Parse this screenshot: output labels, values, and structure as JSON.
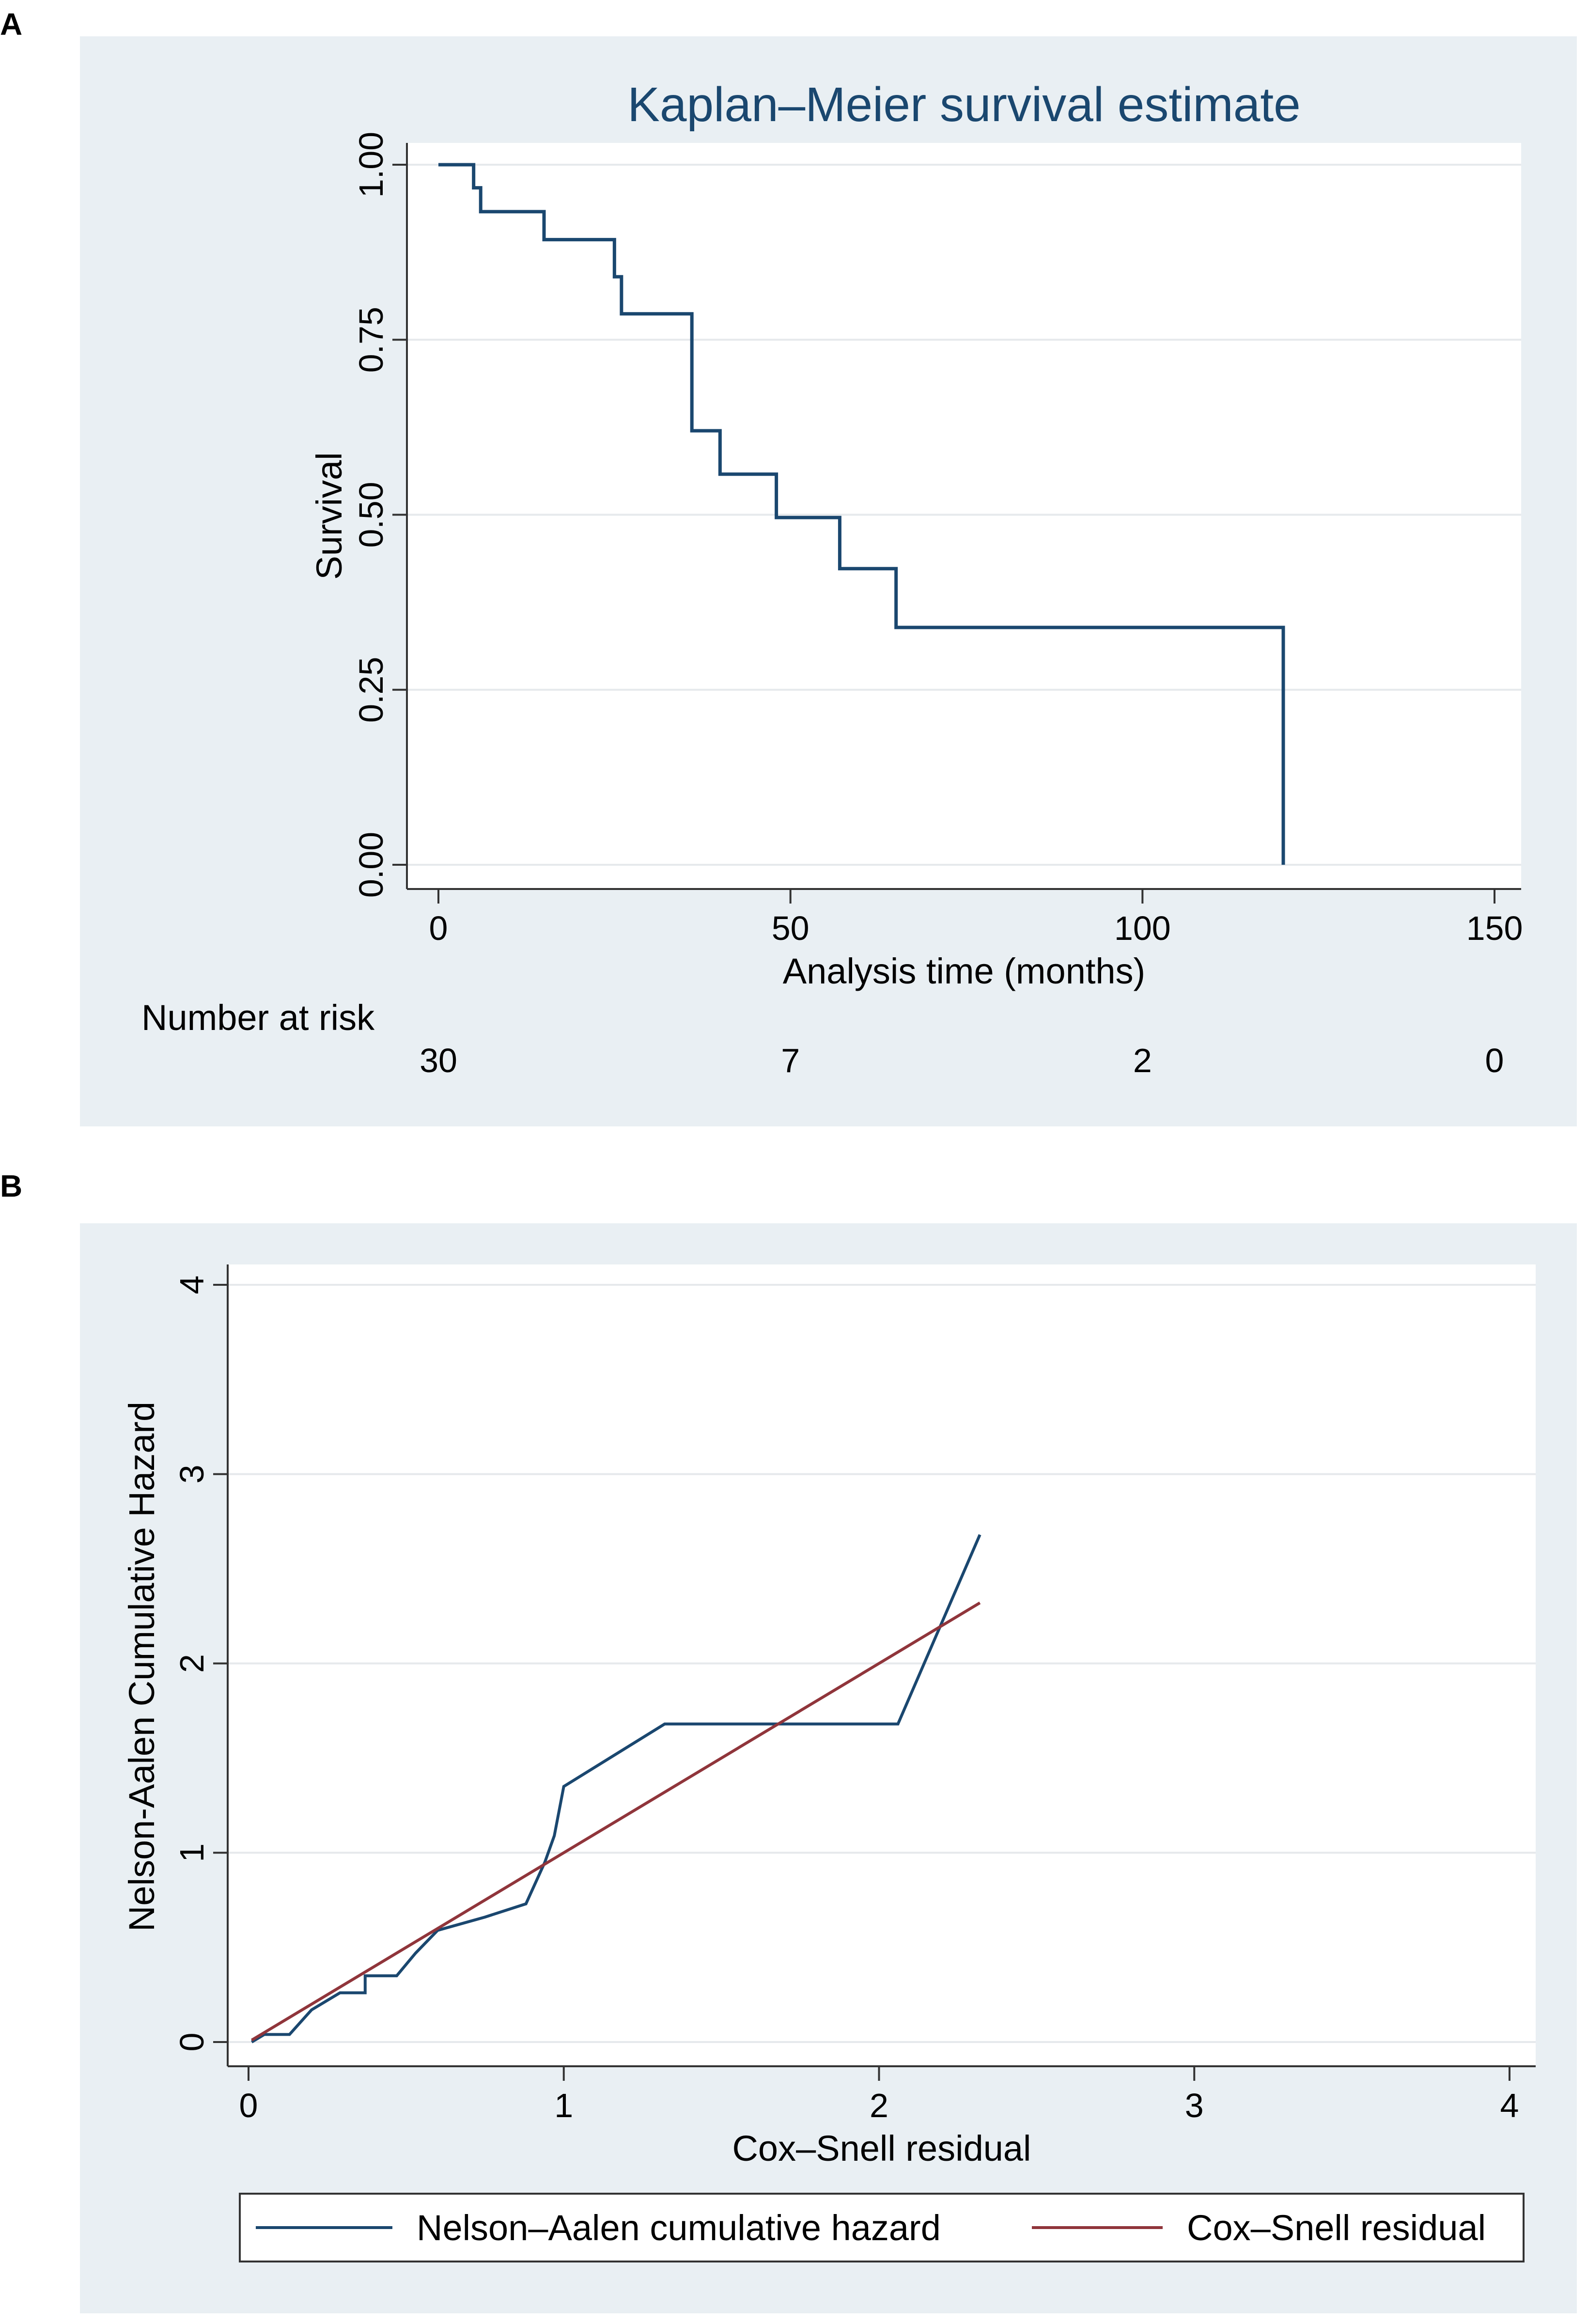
{
  "panels": {
    "a": {
      "letter": "A"
    },
    "b": {
      "letter": "B"
    }
  },
  "colors": {
    "panel_bg": "#e9eff3",
    "plot_bg": "#ffffff",
    "grid": "#e6e9ec",
    "axis": "#333333",
    "title": "#1a476f",
    "navy": "#1a476f",
    "maroon": "#90353b",
    "text": "#000000"
  },
  "chart_data": [
    {
      "id": "km",
      "type": "line",
      "style": "step",
      "title": "Kaplan–Meier survival estimate",
      "xlabel": "Analysis time (months)",
      "ylabel": "Survival",
      "xlim": [
        0,
        150
      ],
      "ylim": [
        0,
        1
      ],
      "xticks": [
        0,
        50,
        100,
        150
      ],
      "yticks": [
        0,
        0.25,
        0.5,
        0.75,
        1
      ],
      "xtick_labels": [
        "0",
        "50",
        "100",
        "150"
      ],
      "ytick_labels": [
        "0.00",
        "0.25",
        "0.50",
        "0.75",
        "1.00"
      ],
      "grid": true,
      "series": [
        {
          "name": "Survival",
          "color": "#1a476f",
          "x": [
            0,
            5,
            5,
            5.5,
            5.5,
            6,
            6,
            15,
            15,
            25,
            25,
            25.5,
            25.5,
            26,
            26,
            36,
            36,
            40,
            40,
            48,
            48,
            57,
            57,
            65,
            65,
            120,
            120
          ],
          "y": [
            1,
            1,
            0.967,
            0.967,
            0.967,
            0.967,
            0.933,
            0.933,
            0.893,
            0.893,
            0.84,
            0.84,
            0.84,
            0.84,
            0.787,
            0.787,
            0.62,
            0.62,
            0.558,
            0.558,
            0.496,
            0.496,
            0.423,
            0.423,
            0.339,
            0.339,
            0
          ]
        }
      ],
      "risk_table": {
        "label": "Number at risk",
        "times": [
          0,
          50,
          100,
          150
        ],
        "counts": [
          "30",
          "7",
          "2",
          "0"
        ]
      }
    },
    {
      "id": "coxsnell",
      "type": "line",
      "title": "",
      "xlabel": "Cox–Snell residual",
      "ylabel": "Nelson-Aalen Cumulative Hazard",
      "xlim": [
        0,
        4
      ],
      "ylim": [
        0,
        4
      ],
      "xticks": [
        0,
        1,
        2,
        3,
        4
      ],
      "yticks": [
        0,
        1,
        2,
        3,
        4
      ],
      "xtick_labels": [
        "0",
        "1",
        "2",
        "3",
        "4"
      ],
      "ytick_labels": [
        "0",
        "1",
        "2",
        "3",
        "4"
      ],
      "grid": true,
      "legend_position": "bottom",
      "series": [
        {
          "name": "Nelson–Aalen cumulative hazard",
          "color": "#1a476f",
          "x": [
            0.01,
            0.05,
            0.13,
            0.2,
            0.29,
            0.37,
            0.37,
            0.47,
            0.53,
            0.6,
            0.75,
            0.88,
            0.94,
            0.97,
            1.0,
            1.32,
            2.06,
            2.32
          ],
          "y": [
            0.0,
            0.04,
            0.04,
            0.17,
            0.26,
            0.26,
            0.35,
            0.35,
            0.47,
            0.59,
            0.66,
            0.73,
            0.95,
            1.09,
            1.35,
            1.68,
            1.68,
            2.68
          ]
        },
        {
          "name": "Cox–Snell residual",
          "color": "#90353b",
          "x": [
            0.01,
            2.32
          ],
          "y": [
            0.01,
            2.32
          ]
        }
      ]
    }
  ]
}
